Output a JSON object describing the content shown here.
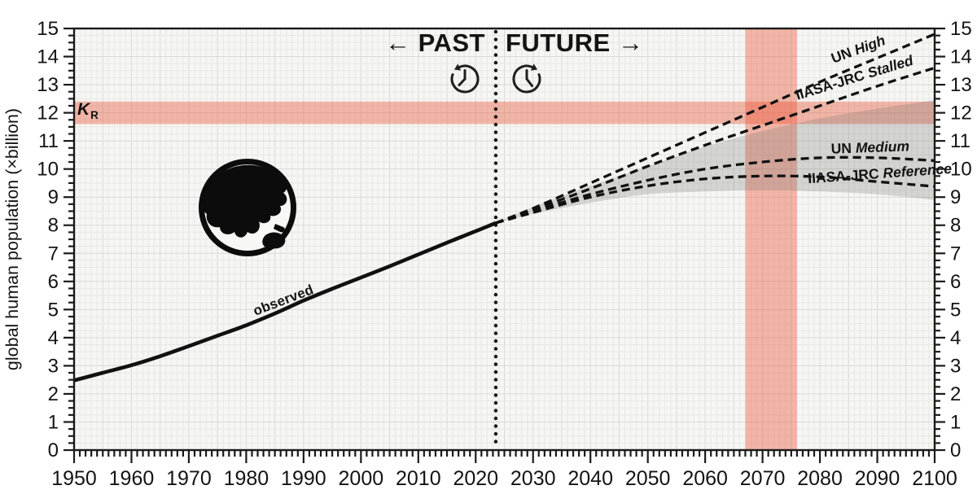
{
  "chart_data": {
    "type": "line",
    "title": "",
    "xlabel": "",
    "ylabel": "global human population (×billion)",
    "xlim": [
      1950,
      2100
    ],
    "ylim": [
      0,
      15
    ],
    "grid": true,
    "xticks": [
      1950,
      1960,
      1970,
      1980,
      1990,
      2000,
      2010,
      2020,
      2030,
      2040,
      2050,
      2060,
      2070,
      2080,
      2090,
      2100
    ],
    "yticks": [
      0,
      1,
      2,
      3,
      4,
      5,
      6,
      7,
      8,
      9,
      10,
      11,
      12,
      13,
      14,
      15
    ],
    "x_minor_step": 1,
    "y_minor_step": 0.25,
    "divider": {
      "year": 2023.5,
      "past_label": "← PAST",
      "future_label": "FUTURE →"
    },
    "kr_band": {
      "label_base": "K",
      "label_sub": "R",
      "y_from": 11.6,
      "y_to": 12.4,
      "color": "rgba(235,75,45,0.38)"
    },
    "window_band": {
      "x_from": 2067,
      "x_to": 2076,
      "color": "rgba(235,75,45,0.38)"
    },
    "uncertainty_band": {
      "color": "rgba(115,115,112,0.26)",
      "x": [
        2023.5,
        2030,
        2040,
        2050,
        2060,
        2070,
        2080,
        2090,
        2100
      ],
      "top": [
        8.08,
        8.65,
        9.4,
        10.1,
        10.8,
        11.35,
        11.8,
        12.15,
        12.45
      ],
      "bottom": [
        8.08,
        8.4,
        8.8,
        9.1,
        9.2,
        9.25,
        9.2,
        9.1,
        8.9
      ]
    },
    "series": [
      {
        "id": "observed",
        "label": "observed",
        "style": "solid",
        "x": [
          1950,
          1955,
          1960,
          1965,
          1970,
          1975,
          1980,
          1985,
          1990,
          1995,
          2000,
          2005,
          2010,
          2015,
          2020,
          2023.5
        ],
        "y": [
          2.48,
          2.75,
          3.02,
          3.34,
          3.7,
          4.07,
          4.44,
          4.86,
          5.32,
          5.74,
          6.14,
          6.54,
          6.96,
          7.38,
          7.79,
          8.08
        ]
      },
      {
        "id": "un-high",
        "label_prefix": "UN",
        "label_variant": "High",
        "style": "dashed",
        "x": [
          2023.5,
          2030,
          2040,
          2050,
          2060,
          2070,
          2080,
          2090,
          2100
        ],
        "y": [
          8.08,
          8.6,
          9.5,
          10.4,
          11.3,
          12.2,
          13.1,
          13.95,
          14.8
        ]
      },
      {
        "id": "iiasa-jrc-stalled",
        "label_prefix": "IIASA-JRC",
        "label_variant": "Stalled",
        "style": "dashed",
        "x": [
          2023.5,
          2030,
          2040,
          2050,
          2060,
          2070,
          2080,
          2090,
          2100
        ],
        "y": [
          8.08,
          8.55,
          9.3,
          10.1,
          10.85,
          11.55,
          12.25,
          12.95,
          13.6
        ]
      },
      {
        "id": "un-medium",
        "label_prefix": "UN",
        "label_variant": "Medium",
        "style": "dashed",
        "x": [
          2023.5,
          2030,
          2040,
          2050,
          2060,
          2070,
          2080,
          2090,
          2100
        ],
        "y": [
          8.08,
          8.5,
          9.1,
          9.6,
          10.0,
          10.25,
          10.4,
          10.4,
          10.3
        ]
      },
      {
        "id": "iiasa-jrc-reference",
        "label_prefix": "IIASA-JRC",
        "label_variant": "Reference",
        "style": "dashed",
        "x": [
          2023.5,
          2030,
          2040,
          2050,
          2060,
          2070,
          2080,
          2090,
          2100
        ],
        "y": [
          8.08,
          8.45,
          9.0,
          9.4,
          9.65,
          9.75,
          9.72,
          9.55,
          9.38
        ]
      }
    ],
    "colors": {
      "line": "#111111",
      "plot_bg": "#f6f6f4",
      "grid_minor": "#e7e7e4",
      "grid_major": "#d9d9d6",
      "axis": "#1a1a1a"
    },
    "icons": {
      "globe": "earth-globe",
      "past_clock": "history-clock",
      "future_clock": "forward-clock"
    }
  }
}
